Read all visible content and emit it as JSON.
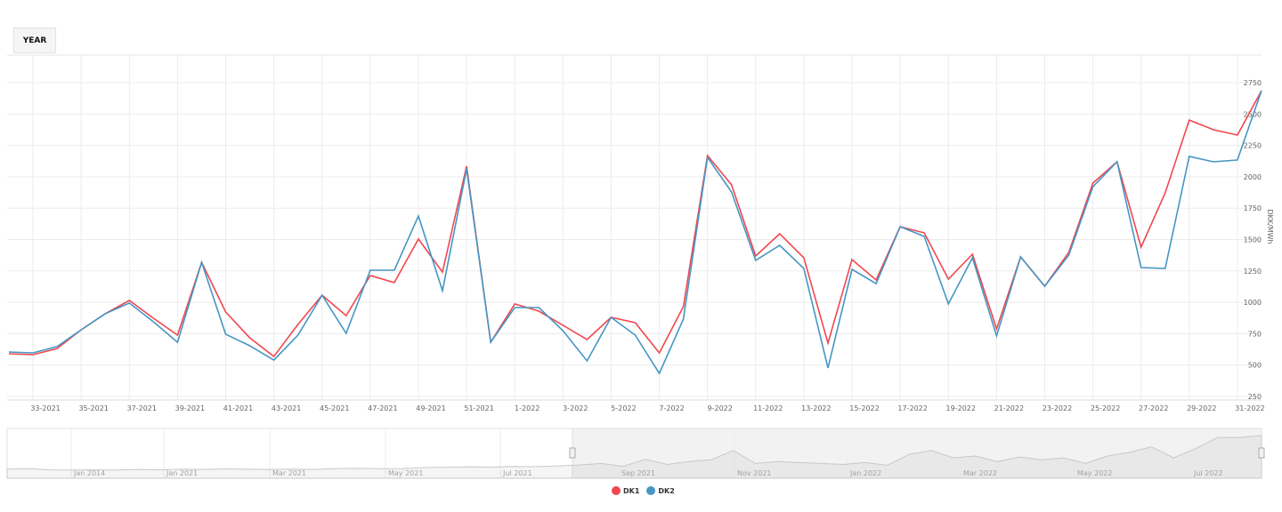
{
  "toolbar": {
    "range_button": "YEAR"
  },
  "chart_data": {
    "type": "line",
    "title": "",
    "xlabel": "",
    "ylabel": "DKK/MWh",
    "ylim": [
      250,
      2750
    ],
    "yticks": [
      250,
      500,
      750,
      1000,
      1250,
      1500,
      1750,
      2000,
      2250,
      2500,
      2750
    ],
    "grid": true,
    "legend_position": "bottom",
    "categories": [
      "32-2021",
      "33-2021",
      "34-2021",
      "35-2021",
      "36-2021",
      "37-2021",
      "38-2021",
      "39-2021",
      "40-2021",
      "41-2021",
      "42-2021",
      "43-2021",
      "44-2021",
      "45-2021",
      "46-2021",
      "47-2021",
      "48-2021",
      "49-2021",
      "50-2021",
      "51-2021",
      "52-2021",
      "1-2022",
      "2-2022",
      "3-2022",
      "4-2022",
      "5-2022",
      "6-2022",
      "7-2022",
      "8-2022",
      "9-2022",
      "10-2022",
      "11-2022",
      "12-2022",
      "13-2022",
      "14-2022",
      "15-2022",
      "16-2022",
      "17-2022",
      "18-2022",
      "19-2022",
      "20-2022",
      "21-2022",
      "22-2022",
      "23-2022",
      "24-2022",
      "25-2022",
      "26-2022",
      "27-2022",
      "28-2022",
      "29-2022",
      "30-2022",
      "31-2022",
      "32-2022"
    ],
    "xtick_labels": [
      "33-2021",
      "35-2021",
      "37-2021",
      "39-2021",
      "41-2021",
      "43-2021",
      "45-2021",
      "47-2021",
      "49-2021",
      "51-2021",
      "1-2022",
      "3-2022",
      "5-2022",
      "7-2022",
      "9-2022",
      "11-2022",
      "13-2022",
      "15-2022",
      "17-2022",
      "19-2022",
      "21-2022",
      "23-2022",
      "25-2022",
      "27-2022",
      "29-2022",
      "31-2022"
    ],
    "series": [
      {
        "name": "DK1",
        "color": "#f0474f",
        "values": [
          590,
          583,
          632,
          781,
          909,
          1015,
          873,
          739,
          1319,
          923,
          717,
          569,
          824,
          1057,
          894,
          1213,
          1157,
          1504,
          1241,
          2084,
          682,
          987,
          930,
          817,
          703,
          880,
          838,
          597,
          965,
          2169,
          1936,
          1369,
          1546,
          1355,
          675,
          1341,
          1178,
          1603,
          1553,
          1185,
          1383,
          788,
          1362,
          1128,
          1397,
          1950,
          2120,
          1440,
          1872,
          2452,
          2375,
          2332,
          2686
        ]
      },
      {
        "name": "DK2",
        "color": "#4596c4",
        "values": [
          604,
          597,
          647,
          781,
          909,
          994,
          845,
          682,
          1319,
          746,
          654,
          540,
          739,
          1057,
          753,
          1256,
          1256,
          1688,
          1093,
          2063,
          682,
          958,
          958,
          774,
          533,
          880,
          739,
          434,
          866,
          2155,
          1879,
          1334,
          1454,
          1270,
          477,
          1263,
          1149,
          1603,
          1525,
          987,
          1355,
          732,
          1362,
          1128,
          1376,
          1921,
          2120,
          1277,
          1270,
          2162,
          2120,
          2134,
          2686
        ]
      }
    ],
    "navigator": {
      "labels": [
        "Jan 2014",
        "Jan 2021",
        "Mar 2021",
        "May 2021",
        "Jul 2021",
        "Sep 2021",
        "Nov 2021",
        "Jan 2022",
        "Mar 2022",
        "May 2022",
        "Jul 2022"
      ],
      "selected_range": [
        "32-2021",
        "32-2022"
      ],
      "values": [
        300,
        320,
        260,
        250,
        260,
        250,
        280,
        260,
        300,
        280,
        310,
        290,
        280,
        300,
        280,
        330,
        340,
        320,
        330,
        380,
        400,
        420,
        410,
        440,
        430,
        470,
        520,
        600,
        450,
        820,
        550,
        700,
        800,
        1300,
        600,
        700,
        650,
        600,
        550,
        650,
        500,
        1100,
        1300,
        900,
        1000,
        700,
        950,
        800,
        900,
        600,
        1000,
        1200,
        1500,
        900,
        1400,
        2000,
        2000,
        2100
      ]
    }
  }
}
